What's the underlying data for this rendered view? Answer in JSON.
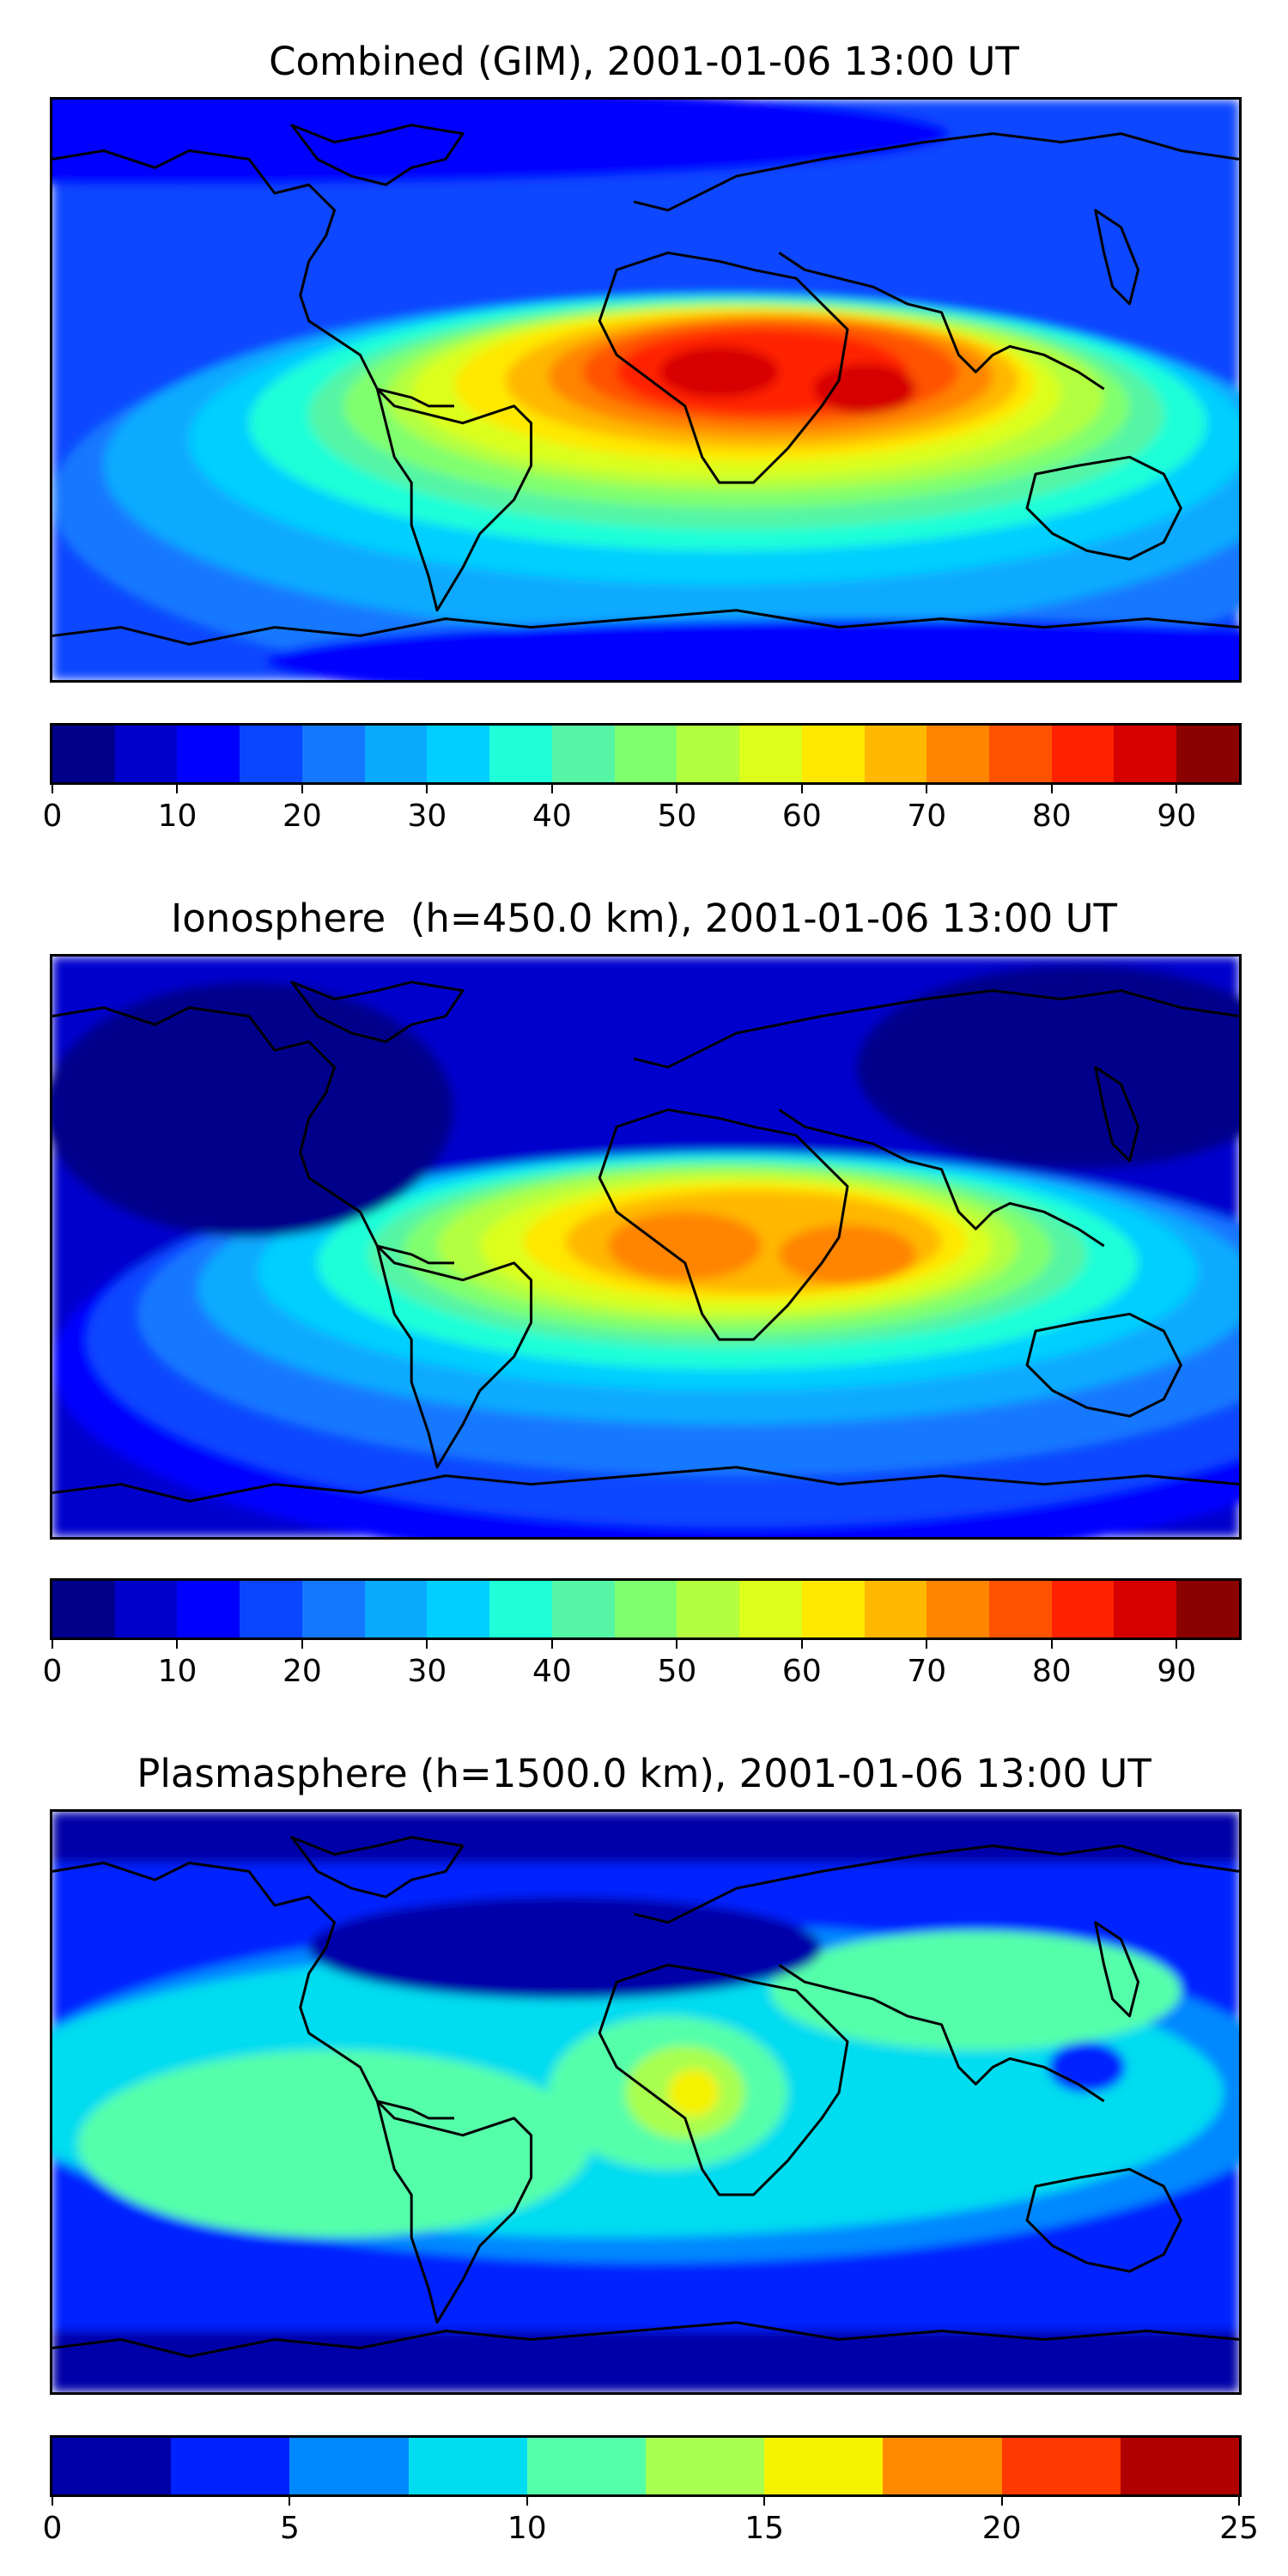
{
  "panels": [
    {
      "title": "Combined (GIM), 2001-01-06 13:00 UT",
      "colorbar": {
        "min": 0,
        "max": 95,
        "step": 5,
        "tick_labels": [
          "0",
          "10",
          "20",
          "30",
          "40",
          "50",
          "60",
          "70",
          "80",
          "90"
        ],
        "tick_values": [
          0,
          10,
          20,
          30,
          40,
          50,
          60,
          70,
          80,
          90
        ],
        "colors": [
          "#00008b",
          "#0000cd",
          "#0000ff",
          "#0a46ff",
          "#1478ff",
          "#0aaaff",
          "#00cfff",
          "#1fffd8",
          "#55f5a6",
          "#80ff6e",
          "#b3ff3f",
          "#dcff1c",
          "#ffe800",
          "#ffb700",
          "#ff8400",
          "#ff5200",
          "#ff2200",
          "#d60000",
          "#8b0000"
        ]
      }
    },
    {
      "title": "Ionosphere  (h=450.0 km), 2001-01-06 13:00 UT",
      "colorbar": {
        "min": 0,
        "max": 95,
        "step": 5,
        "tick_labels": [
          "0",
          "10",
          "20",
          "30",
          "40",
          "50",
          "60",
          "70",
          "80",
          "90"
        ],
        "tick_values": [
          0,
          10,
          20,
          30,
          40,
          50,
          60,
          70,
          80,
          90
        ],
        "colors": [
          "#00008b",
          "#0000cd",
          "#0000ff",
          "#0a46ff",
          "#1478ff",
          "#0aaaff",
          "#00cfff",
          "#1fffd8",
          "#55f5a6",
          "#80ff6e",
          "#b3ff3f",
          "#dcff1c",
          "#ffe800",
          "#ffb700",
          "#ff8400",
          "#ff5200",
          "#ff2200",
          "#d60000",
          "#8b0000"
        ]
      }
    },
    {
      "title": "Plasmasphere (h=1500.0 km), 2001-01-06 13:00 UT",
      "colorbar": {
        "min": 0,
        "max": 25,
        "step": 2.5,
        "tick_labels": [
          "0",
          "5",
          "10",
          "15",
          "20",
          "25"
        ],
        "tick_values": [
          0,
          5,
          10,
          15,
          20,
          25
        ],
        "colors": [
          "#0000a8",
          "#0022ff",
          "#0088ff",
          "#00dcf0",
          "#55ffaa",
          "#a8ff4f",
          "#f5f200",
          "#ff8a00",
          "#ff3a00",
          "#b00000"
        ]
      }
    }
  ]
}
